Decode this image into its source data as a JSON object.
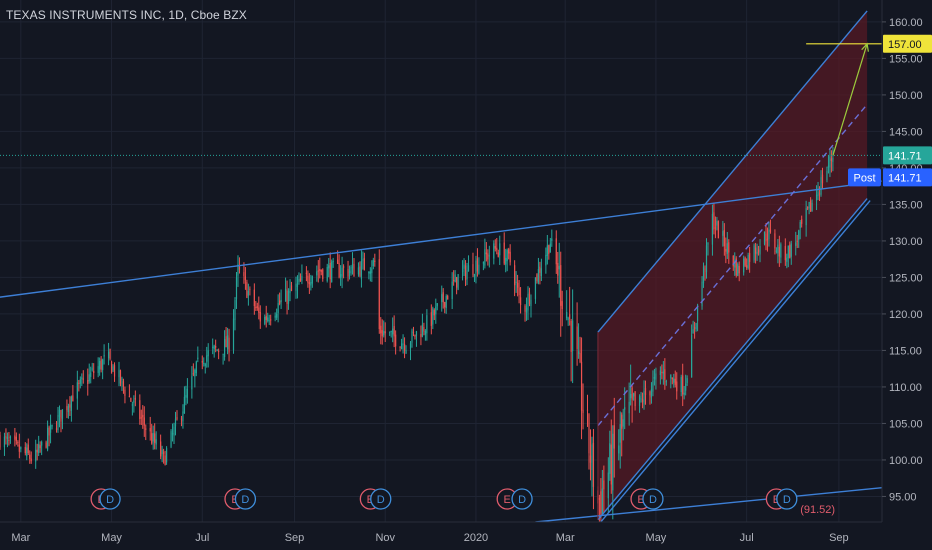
{
  "header": {
    "title": "TEXAS INSTRUMENTS INC, 1D, Cboe BZX"
  },
  "colors": {
    "background": "#131722",
    "grid": "#1f2433",
    "text": "#b2b5be",
    "up": "#26a69a",
    "down": "#ef5350",
    "trendline": "#3d7fd6",
    "channel_fill": "#5a1a23",
    "target": "#f0e43a",
    "arrow": "#9ccc3d",
    "last_price_bg": "#26a69a",
    "post_bg": "#2962ff",
    "earnings": "#e05c6c",
    "dividend": "#3f8fdc"
  },
  "price_scale": {
    "ticks": [
      "160.00",
      "155.00",
      "150.00",
      "145.00",
      "140.00",
      "135.00",
      "130.00",
      "125.00",
      "120.00",
      "115.00",
      "110.00",
      "105.00",
      "100.00",
      "95.00"
    ]
  },
  "time_scale": {
    "labels": [
      "Mar",
      "May",
      "Jul",
      "Sep",
      "Nov",
      "2020",
      "Mar",
      "May",
      "Jul",
      "Sep"
    ]
  },
  "markers": {
    "target_label": "157.00",
    "last_price_label": "141.71",
    "post_tag": "Post",
    "post_price_label": "141.71",
    "earnings_letter": "E",
    "dividend_letter": "D",
    "indicator_label": "(91.52)"
  },
  "chart_data": {
    "type": "candlestick",
    "title": "TEXAS INSTRUMENTS INC, 1D, Cboe BZX",
    "xlabel": "",
    "ylabel": "",
    "x_range": [
      "2019-02-15",
      "2020-09-30"
    ],
    "ylim": [
      91.5,
      163
    ],
    "grid": true,
    "last_price": 141.71,
    "target_price": 157.0,
    "anchors": [
      {
        "date": "2019-02-15",
        "close": 103
      },
      {
        "date": "2019-03-10",
        "close": 100
      },
      {
        "date": "2019-04-05",
        "close": 109
      },
      {
        "date": "2019-04-28",
        "close": 114
      },
      {
        "date": "2019-05-20",
        "close": 106
      },
      {
        "date": "2019-06-05",
        "close": 100
      },
      {
        "date": "2019-06-30",
        "close": 114
      },
      {
        "date": "2019-07-20",
        "close": 116
      },
      {
        "date": "2019-07-25",
        "close": 126
      },
      {
        "date": "2019-08-10",
        "close": 119
      },
      {
        "date": "2019-08-25",
        "close": 122
      },
      {
        "date": "2019-09-15",
        "close": 126
      },
      {
        "date": "2019-10-10",
        "close": 126
      },
      {
        "date": "2019-10-25",
        "close": 127
      },
      {
        "date": "2019-10-26",
        "close": 118
      },
      {
        "date": "2019-11-15",
        "close": 116
      },
      {
        "date": "2019-12-01",
        "close": 119
      },
      {
        "date": "2019-12-20",
        "close": 125
      },
      {
        "date": "2020-01-15",
        "close": 129
      },
      {
        "date": "2020-01-25",
        "close": 127
      },
      {
        "date": "2020-02-01",
        "close": 120
      },
      {
        "date": "2020-02-20",
        "close": 130
      },
      {
        "date": "2020-03-05",
        "close": 118
      },
      {
        "date": "2020-03-23",
        "close": 94
      },
      {
        "date": "2020-04-10",
        "close": 105
      },
      {
        "date": "2020-05-05",
        "close": 112
      },
      {
        "date": "2020-05-20",
        "close": 110
      },
      {
        "date": "2020-06-08",
        "close": 133
      },
      {
        "date": "2020-06-25",
        "close": 126
      },
      {
        "date": "2020-07-15",
        "close": 131
      },
      {
        "date": "2020-07-25",
        "close": 128
      },
      {
        "date": "2020-08-01",
        "close": 129
      },
      {
        "date": "2020-08-20",
        "close": 138
      },
      {
        "date": "2020-08-28",
        "close": 141.71
      }
    ],
    "trendlines": [
      {
        "name": "resistance",
        "from": {
          "date": "2019-02-15",
          "price": 122.3
        },
        "to": {
          "date": "2020-09-30",
          "price": 138.2
        }
      },
      {
        "name": "support",
        "from": {
          "date": "2020-02-10",
          "price": 91.5
        },
        "to": {
          "date": "2020-09-30",
          "price": 96.2
        }
      },
      {
        "name": "channel-upper",
        "from": {
          "date": "2020-03-23",
          "price": 117.5
        },
        "to": {
          "date": "2020-09-20",
          "price": 161.5
        }
      },
      {
        "name": "channel-mid",
        "from": {
          "date": "2020-03-23",
          "price": 104.7
        },
        "to": {
          "date": "2020-09-20",
          "price": 148.7
        }
      },
      {
        "name": "channel-lower",
        "from": {
          "date": "2020-03-23",
          "price": 91.8
        },
        "to": {
          "date": "2020-09-20",
          "price": 135.8
        }
      }
    ],
    "projection": {
      "from": {
        "date": "2020-08-28",
        "price": 141.71
      },
      "to": {
        "date": "2020-09-20",
        "price": 157.0
      }
    },
    "events": [
      {
        "date": "2019-04-24",
        "kind": "earnings"
      },
      {
        "date": "2019-04-30",
        "kind": "dividend"
      },
      {
        "date": "2019-07-23",
        "kind": "earnings"
      },
      {
        "date": "2019-07-30",
        "kind": "dividend"
      },
      {
        "date": "2019-10-22",
        "kind": "earnings"
      },
      {
        "date": "2019-10-29",
        "kind": "dividend"
      },
      {
        "date": "2020-01-22",
        "kind": "earnings"
      },
      {
        "date": "2020-02-01",
        "kind": "dividend"
      },
      {
        "date": "2020-04-21",
        "kind": "earnings"
      },
      {
        "date": "2020-04-29",
        "kind": "dividend"
      },
      {
        "date": "2020-07-21",
        "kind": "earnings"
      },
      {
        "date": "2020-07-28",
        "kind": "dividend"
      }
    ]
  }
}
